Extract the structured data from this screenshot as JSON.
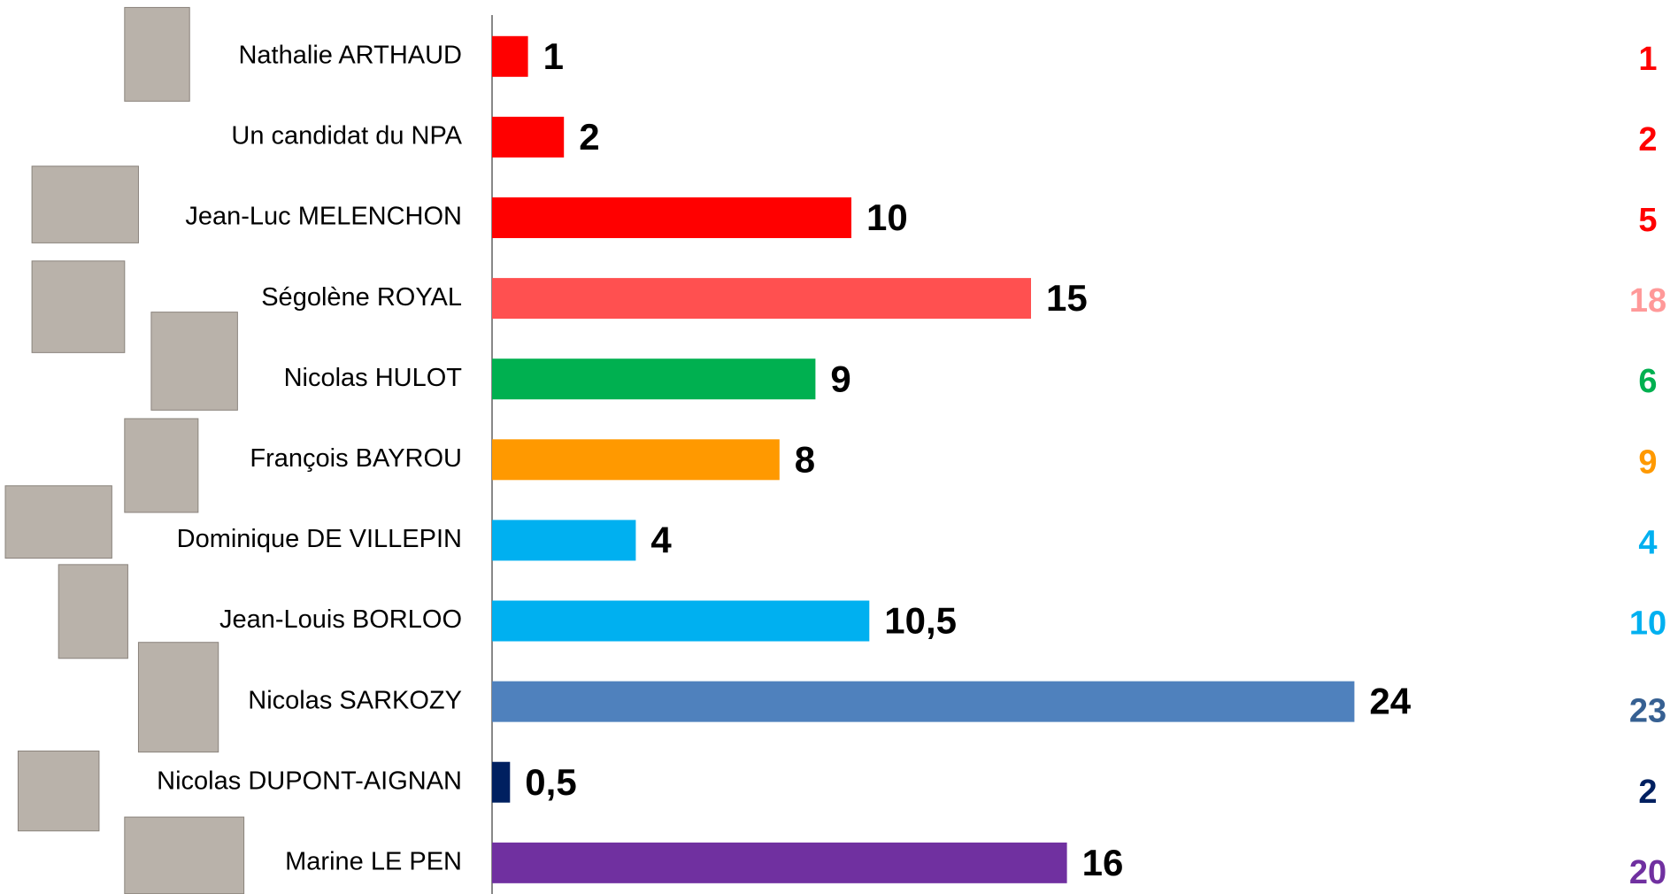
{
  "chart_data": {
    "type": "bar",
    "orientation": "horizontal",
    "categories": [
      "Nathalie ARTHAUD",
      "Un candidat du NPA",
      "Jean-Luc MELENCHON",
      "Ségolène ROYAL",
      "Nicolas HULOT",
      "François BAYROU",
      "Dominique DE VILLEPIN",
      "Jean-Louis BORLOO",
      "Nicolas SARKOZY",
      "Nicolas DUPONT-AIGNAN",
      "Marine LE PEN"
    ],
    "values": [
      1,
      2,
      10,
      15,
      9,
      8,
      4,
      10.5,
      24,
      0.5,
      16
    ],
    "value_labels": [
      "1",
      "2",
      "10",
      "15",
      "9",
      "8",
      "4",
      "10,5",
      "24",
      "0,5",
      "16"
    ],
    "colors": [
      "#ff0000",
      "#ff0000",
      "#ff0000",
      "#ff5050",
      "#00b050",
      "#ff9900",
      "#00b0f0",
      "#00b0f0",
      "#4f81bd",
      "#002060",
      "#7030a0"
    ],
    "secondary_values": [
      1,
      2,
      5,
      18,
      6,
      9,
      4,
      10,
      23,
      2,
      20
    ],
    "secondary_colors": [
      "#ff0000",
      "#ff0000",
      "#ff0000",
      "#ff9999",
      "#00b050",
      "#ff9900",
      "#00b0f0",
      "#00b0f0",
      "#366092",
      "#002060",
      "#7030a0"
    ],
    "xlim": [
      0,
      30
    ]
  }
}
